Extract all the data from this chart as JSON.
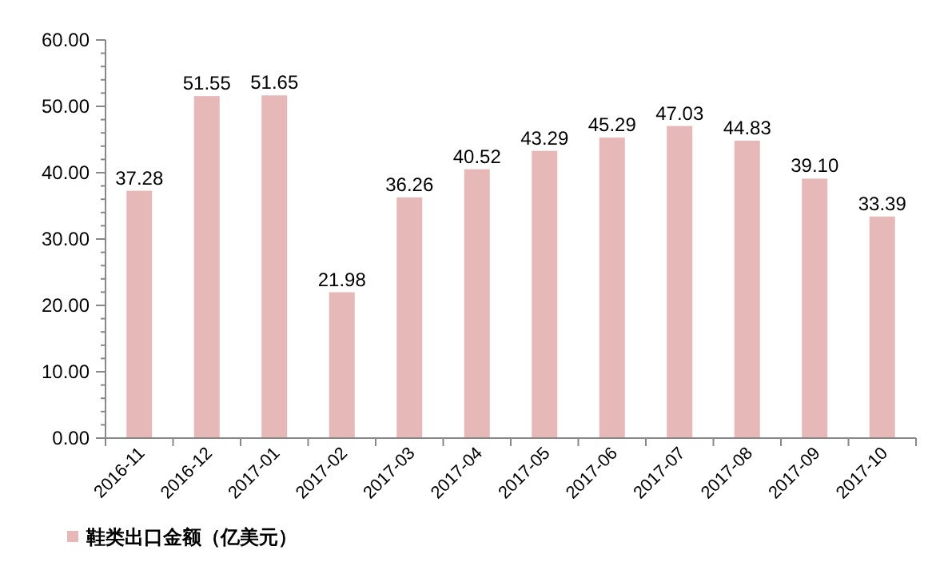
{
  "chart_data": {
    "type": "bar",
    "categories": [
      "2016-11",
      "2016-12",
      "2017-01",
      "2017-02",
      "2017-03",
      "2017-04",
      "2017-05",
      "2017-06",
      "2017-07",
      "2017-08",
      "2017-09",
      "2017-10"
    ],
    "series": [
      {
        "name": "鞋类出口金额（亿美元）",
        "color": "#e6b8b7",
        "values": [
          37.28,
          51.55,
          51.65,
          21.98,
          36.26,
          40.52,
          43.29,
          45.29,
          47.03,
          44.83,
          39.1,
          33.39
        ],
        "value_labels": [
          "37.28",
          "51.55",
          "51.65",
          "21.98",
          "36.26",
          "40.52",
          "43.29",
          "45.29",
          "47.03",
          "44.83",
          "39.10",
          "33.39"
        ]
      }
    ],
    "ylim": [
      0,
      60
    ],
    "yticks": [
      {
        "value": 0,
        "label": "0.00"
      },
      {
        "value": 2,
        "label": null
      },
      {
        "value": 4,
        "label": null
      },
      {
        "value": 6,
        "label": null
      },
      {
        "value": 8,
        "label": null
      },
      {
        "value": 10,
        "label": "10.00"
      },
      {
        "value": 12,
        "label": null
      },
      {
        "value": 14,
        "label": null
      },
      {
        "value": 16,
        "label": null
      },
      {
        "value": 18,
        "label": null
      },
      {
        "value": 20,
        "label": "20.00"
      },
      {
        "value": 22,
        "label": null
      },
      {
        "value": 24,
        "label": null
      },
      {
        "value": 26,
        "label": null
      },
      {
        "value": 28,
        "label": null
      },
      {
        "value": 30,
        "label": "30.00"
      },
      {
        "value": 32,
        "label": null
      },
      {
        "value": 34,
        "label": null
      },
      {
        "value": 36,
        "label": null
      },
      {
        "value": 38,
        "label": null
      },
      {
        "value": 40,
        "label": "40.00"
      },
      {
        "value": 42,
        "label": null
      },
      {
        "value": 44,
        "label": null
      },
      {
        "value": 46,
        "label": null
      },
      {
        "value": 48,
        "label": null
      },
      {
        "value": 50,
        "label": "50.00"
      },
      {
        "value": 52,
        "label": null
      },
      {
        "value": 54,
        "label": null
      },
      {
        "value": 56,
        "label": null
      },
      {
        "value": 58,
        "label": null
      },
      {
        "value": 60,
        "label": "60.00"
      }
    ],
    "grid": false,
    "legend": "bottom left"
  }
}
